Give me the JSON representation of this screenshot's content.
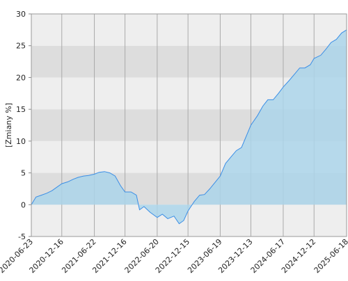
{
  "chart_data": {
    "type": "area",
    "ylabel": "[Zmiany %]",
    "x": [
      "2020-06-23",
      "2020-07-20",
      "2020-08-20",
      "2020-09-20",
      "2020-10-20",
      "2020-11-20",
      "2020-12-16",
      "2021-01-20",
      "2021-02-20",
      "2021-03-20",
      "2021-04-20",
      "2021-05-20",
      "2021-06-22",
      "2021-07-20",
      "2021-08-20",
      "2021-09-20",
      "2021-10-20",
      "2021-11-20",
      "2021-12-16",
      "2022-01-20",
      "2022-02-20",
      "2022-03-10",
      "2022-04-05",
      "2022-05-10",
      "2022-06-20",
      "2022-07-20",
      "2022-08-20",
      "2022-09-25",
      "2022-10-25",
      "2022-11-20",
      "2022-12-15",
      "2023-01-20",
      "2023-02-20",
      "2023-03-20",
      "2023-04-20",
      "2023-05-20",
      "2023-06-19",
      "2023-07-20",
      "2023-08-20",
      "2023-09-20",
      "2023-10-20",
      "2023-11-20",
      "2023-12-13",
      "2024-01-20",
      "2024-02-20",
      "2024-03-20",
      "2024-04-20",
      "2024-05-20",
      "2024-06-17",
      "2024-07-20",
      "2024-08-20",
      "2024-09-20",
      "2024-10-20",
      "2024-11-20",
      "2024-12-12",
      "2025-01-20",
      "2025-02-20",
      "2025-03-20",
      "2025-04-20",
      "2025-05-20",
      "2025-06-18"
    ],
    "series": [
      {
        "color": "#3a8ee6",
        "fill": "#acd5ea",
        "values": [
          0,
          1.2,
          1.5,
          1.8,
          2.2,
          2.8,
          3.3,
          3.6,
          4.0,
          4.3,
          4.5,
          4.6,
          4.8,
          5.1,
          5.2,
          5.0,
          4.5,
          3.0,
          2.0,
          2.0,
          1.5,
          -0.8,
          -0.3,
          -1.2,
          -2.0,
          -1.5,
          -2.2,
          -1.8,
          -3.0,
          -2.5,
          -1.0,
          0.5,
          1.5,
          1.6,
          2.5,
          3.5,
          4.5,
          6.5,
          7.5,
          8.5,
          9.0,
          11,
          12.5,
          14,
          15.5,
          16.5,
          16.5,
          17.5,
          18.5,
          19.5,
          20.5,
          21.5,
          21.5,
          22,
          23,
          23.5,
          24.5,
          25.5,
          26,
          27,
          27.5
        ]
      }
    ],
    "xlim": [
      "2020-06-23",
      "2025-06-18"
    ],
    "xticks": [
      "2020-06-23",
      "2020-12-16",
      "2021-06-22",
      "2021-12-16",
      "2022-06-20",
      "2022-12-15",
      "2023-06-19",
      "2023-12-13",
      "2024-06-17",
      "2024-12-12",
      "2025-06-18"
    ],
    "ylim": [
      -5,
      30
    ],
    "yticks": [
      -5,
      0,
      5,
      10,
      15,
      20,
      25,
      30
    ],
    "grid": true
  }
}
